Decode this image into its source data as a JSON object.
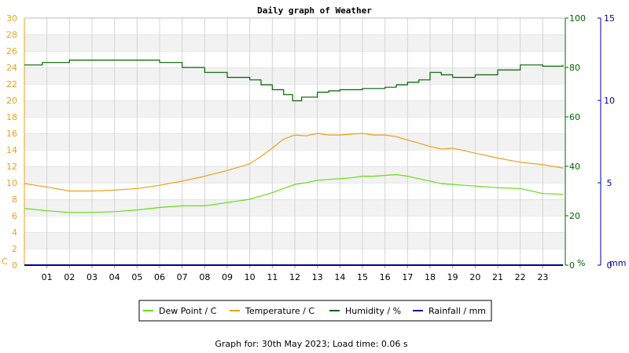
{
  "chart_data": {
    "type": "line",
    "title": "Daily graph of Weather",
    "footer": "Graph for: 30th May 2023; Load time: 0.06 s",
    "x_ticks": [
      "01",
      "02",
      "03",
      "04",
      "05",
      "06",
      "07",
      "08",
      "09",
      "10",
      "11",
      "12",
      "13",
      "14",
      "15",
      "16",
      "17",
      "18",
      "19",
      "20",
      "21",
      "22",
      "23"
    ],
    "xlim": [
      0,
      24
    ],
    "axes": {
      "left": {
        "unit": "C",
        "ylim": [
          0,
          30
        ],
        "ticks": [
          0,
          2,
          4,
          6,
          8,
          10,
          12,
          14,
          16,
          18,
          20,
          22,
          24,
          26,
          28,
          30
        ],
        "color": "#e8a317"
      },
      "right": {
        "unit": "%",
        "ylim": [
          0,
          100
        ],
        "ticks": [
          0,
          20,
          40,
          60,
          80,
          100
        ],
        "color": "#006400"
      },
      "rain": {
        "unit": "mm",
        "ylim": [
          0,
          15
        ],
        "ticks": [
          0,
          5,
          10,
          15
        ],
        "color": "#000099"
      }
    },
    "grid": true,
    "legend_position": "bottom",
    "series": [
      {
        "name": "Dew Point / C",
        "axis": "left",
        "color": "#66dd11",
        "x": [
          0,
          1,
          2,
          3,
          4,
          5,
          6,
          7,
          8,
          9,
          10,
          10.5,
          11,
          11.5,
          12,
          12.5,
          13,
          13.5,
          14,
          14.5,
          15,
          15.5,
          16,
          16.5,
          17,
          17.5,
          18,
          18.5,
          19,
          20,
          21,
          22,
          23,
          23.9
        ],
        "values": [
          6.9,
          6.6,
          6.4,
          6.4,
          6.5,
          6.7,
          7.0,
          7.2,
          7.2,
          7.6,
          8.0,
          8.4,
          8.8,
          9.3,
          9.8,
          10.0,
          10.3,
          10.4,
          10.5,
          10.6,
          10.8,
          10.8,
          10.9,
          11.0,
          10.8,
          10.5,
          10.2,
          9.9,
          9.8,
          9.6,
          9.4,
          9.3,
          8.7,
          8.6
        ]
      },
      {
        "name": "Temperature / C",
        "axis": "left",
        "color": "#e8a317",
        "x": [
          0,
          1,
          2,
          3,
          4,
          5,
          6,
          7,
          8,
          9,
          10,
          10.5,
          11,
          11.5,
          12,
          12.5,
          13,
          13.5,
          14,
          14.5,
          15,
          15.5,
          16,
          16.5,
          17,
          17.5,
          18,
          18.5,
          19,
          20,
          21,
          22,
          23,
          23.9
        ],
        "values": [
          9.9,
          9.5,
          9.0,
          9.0,
          9.1,
          9.3,
          9.7,
          10.2,
          10.8,
          11.5,
          12.3,
          13.2,
          14.2,
          15.3,
          15.8,
          15.7,
          16.0,
          15.8,
          15.8,
          15.9,
          16.0,
          15.8,
          15.8,
          15.6,
          15.2,
          14.8,
          14.4,
          14.1,
          14.2,
          13.6,
          13.0,
          12.5,
          12.2,
          11.8
        ]
      },
      {
        "name": "Humidity / %",
        "axis": "right",
        "color": "#006400",
        "x": [
          0,
          0.8,
          1,
          2,
          3,
          4,
          5,
          6,
          6.2,
          7,
          8,
          9,
          10,
          10.5,
          11,
          11.5,
          11.9,
          12.3,
          13,
          13.5,
          14,
          15,
          16,
          16.5,
          17,
          17.5,
          18,
          18.5,
          19,
          20,
          21,
          22,
          23,
          23.9
        ],
        "values": [
          81,
          82,
          82,
          83,
          83,
          83,
          83,
          82,
          82,
          80,
          78,
          76,
          75,
          73,
          71,
          69,
          66.5,
          68,
          70,
          70.5,
          71,
          71.5,
          72,
          73,
          74,
          75,
          78,
          77,
          76,
          77,
          79,
          81,
          80.5,
          81
        ]
      },
      {
        "name": "Rainfall / mm",
        "axis": "rain",
        "color": "#000099",
        "x": [
          0,
          23.9
        ],
        "values": [
          0,
          0
        ]
      }
    ]
  }
}
